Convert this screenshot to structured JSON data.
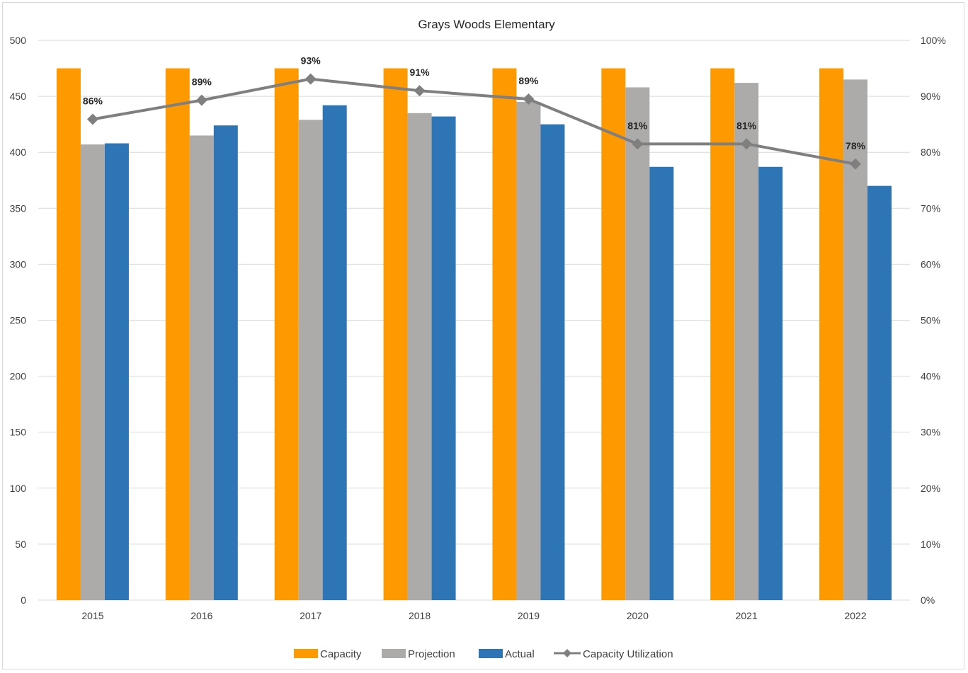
{
  "chart_data": {
    "type": "bar",
    "title": "Grays Woods Elementary",
    "categories": [
      "2015",
      "2016",
      "2017",
      "2018",
      "2019",
      "2020",
      "2021",
      "2022"
    ],
    "series": [
      {
        "name": "Capacity",
        "kind": "bar",
        "color": "#FF9900",
        "values": [
          475,
          475,
          475,
          475,
          475,
          475,
          475,
          475
        ]
      },
      {
        "name": "Projection",
        "kind": "bar",
        "color": "#ADABAA",
        "values": [
          407,
          415,
          429,
          435,
          445,
          458,
          462,
          465
        ]
      },
      {
        "name": "Actual",
        "kind": "bar",
        "color": "#2E75B6",
        "values": [
          408,
          424,
          442,
          432,
          425,
          387,
          387,
          370
        ]
      },
      {
        "name": "Capacity Utilization",
        "kind": "line",
        "axis": "right",
        "color": "#7F7F7F",
        "values": [
          0.859,
          0.893,
          0.931,
          0.91,
          0.895,
          0.815,
          0.815,
          0.779
        ],
        "labels": [
          "86%",
          "89%",
          "93%",
          "91%",
          "89%",
          "81%",
          "81%",
          "78%"
        ]
      }
    ],
    "ylim": [
      0,
      500
    ],
    "yticks": [
      "0",
      "50",
      "100",
      "150",
      "200",
      "250",
      "300",
      "350",
      "400",
      "450",
      "500"
    ],
    "y2lim": [
      0,
      1
    ],
    "y2ticks": [
      "0%",
      "10%",
      "20%",
      "30%",
      "40%",
      "50%",
      "60%",
      "70%",
      "80%",
      "90%",
      "100%"
    ],
    "grid": true,
    "legend": "bottom"
  }
}
